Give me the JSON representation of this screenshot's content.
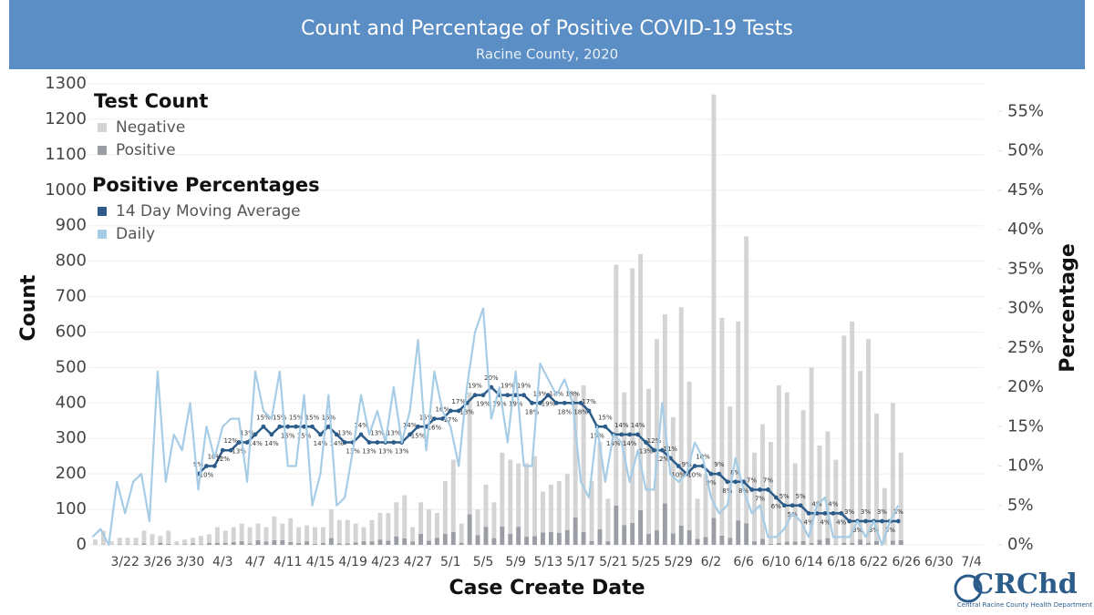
{
  "chart_data": {
    "type": "bar_line",
    "title": "Count and Percentage of Positive COVID-19 Tests",
    "subtitle": "Racine County, 2020",
    "xlabel": "Case Create Date",
    "ylabel": "Count",
    "y2label": "Percentage",
    "legend_titles": [
      "Test Count",
      "Positive Percentages"
    ],
    "categories": [
      null,
      null,
      null,
      null,
      "3/22",
      null,
      null,
      null,
      "3/26",
      null,
      null,
      null,
      "3/30",
      null,
      null,
      null,
      "4/3",
      null,
      null,
      null,
      "4/7",
      null,
      null,
      null,
      "4/11",
      null,
      null,
      null,
      "4/15",
      null,
      null,
      null,
      "4/19",
      null,
      null,
      null,
      "4/23",
      null,
      null,
      null,
      "4/27",
      null,
      null,
      null,
      "5/1",
      null,
      null,
      null,
      "5/5",
      null,
      null,
      null,
      "5/9",
      null,
      null,
      null,
      "5/13",
      null,
      null,
      null,
      "5/17",
      null,
      null,
      null,
      "5/21",
      null,
      null,
      null,
      "5/25",
      null,
      null,
      null,
      "5/29",
      null,
      null,
      null,
      "6/2",
      null,
      null,
      null,
      "6/6",
      null,
      null,
      null,
      "6/10",
      null,
      null,
      null,
      "6/14",
      null,
      null,
      null,
      "6/18",
      null,
      null,
      null,
      "6/22",
      null,
      null,
      null,
      "6/26",
      null,
      null,
      null,
      "6/30",
      null,
      null,
      null,
      "7/4",
      null
    ],
    "series": [
      {
        "name": "Negative",
        "kind": "bar",
        "color": "#d4d4d4",
        "values": [
          15,
          39,
          10,
          18,
          19,
          18,
          36,
          29,
          19,
          37,
          9,
          13,
          16,
          23,
          25,
          44,
          34,
          42,
          50,
          46,
          47,
          41,
          67,
          47,
          67,
          45,
          45,
          47,
          45,
          81,
          66,
          66,
          53,
          40,
          60,
          75,
          78,
          96,
          122,
          41,
          89,
          88,
          70,
          149,
          204,
          54,
          344,
          73,
          119,
          101,
          208,
          209,
          179,
          207,
          225,
          115,
          134,
          146,
          158,
          353,
          414,
          169,
          246,
          120,
          679,
          374,
          718,
          722,
          409,
          539,
          533,
          328,
          616,
          419,
          113,
          178,
          1194,
          614,
          370,
          561,
          809,
          250,
          323,
          287,
          445,
          421,
          221,
          369,
          495,
          266,
          301,
          238,
          584,
          624,
          475,
          574,
          359,
          160,
          388,
          247,
          null,
          null,
          null,
          null,
          null,
          null,
          null,
          null,
          null,
          null
        ]
      },
      {
        "name": "Positive",
        "kind": "bar",
        "color": "#9b9fa5",
        "values": [
          0,
          1,
          0,
          2,
          1,
          2,
          4,
          1,
          6,
          3,
          1,
          2,
          4,
          2,
          5,
          6,
          6,
          8,
          10,
          4,
          13,
          9,
          13,
          13,
          8,
          5,
          10,
          3,
          5,
          19,
          4,
          4,
          7,
          10,
          10,
          15,
          12,
          24,
          18,
          9,
          31,
          12,
          20,
          31,
          36,
          6,
          86,
          27,
          51,
          19,
          52,
          31,
          51,
          23,
          25,
          35,
          36,
          34,
          42,
          77,
          36,
          11,
          44,
          10,
          111,
          56,
          62,
          98,
          31,
          41,
          117,
          32,
          54,
          41,
          17,
          22,
          76,
          26,
          20,
          69,
          61,
          10,
          17,
          3,
          5,
          9,
          9,
          11,
          5,
          14,
          19,
          2,
          6,
          6,
          15,
          6,
          11,
          0,
          12,
          13,
          null,
          null,
          null,
          null,
          null,
          null,
          null,
          null,
          null,
          null
        ]
      },
      {
        "name": "14 Day Moving Average",
        "kind": "line",
        "axis": "y2",
        "markers": true,
        "color": "#2b5c8a",
        "values": [
          null,
          null,
          null,
          null,
          null,
          null,
          null,
          null,
          null,
          null,
          null,
          null,
          null,
          9,
          10,
          10,
          12,
          12,
          13,
          13,
          14,
          15,
          14,
          15,
          15,
          15,
          15,
          15,
          14,
          15,
          14,
          13,
          13,
          14,
          13,
          13,
          13,
          13,
          13,
          14,
          15,
          15,
          16,
          16,
          17,
          17,
          18,
          19,
          19,
          20,
          19,
          19,
          19,
          19,
          18,
          18,
          19,
          18,
          18,
          18,
          18,
          17,
          15,
          15,
          14,
          14,
          14,
          14,
          13,
          12,
          12,
          11,
          10,
          9,
          10,
          10,
          9,
          9,
          8,
          8,
          8,
          7,
          7,
          7,
          6,
          5,
          5,
          5,
          4,
          4,
          4,
          4,
          4,
          3,
          3,
          3,
          3,
          3,
          3,
          3,
          null,
          null,
          null,
          null,
          null,
          null,
          null,
          null,
          null,
          null
        ],
        "value_labels": [
          null,
          null,
          null,
          null,
          null,
          null,
          null,
          null,
          null,
          null,
          null,
          null,
          null,
          "9%",
          "10%",
          "10%",
          "12%",
          "12%",
          "13%",
          "13%",
          "14%",
          "15%",
          "14%",
          "15%",
          "15%",
          "15%",
          "15%",
          "15%",
          "14%",
          "15%",
          "14%",
          "13%",
          "13%",
          "14%",
          "13%",
          "13%",
          "13%",
          "13%",
          "13%",
          "14%",
          "15%",
          "15%",
          "16%",
          "16%",
          "17%",
          "17%",
          "18%",
          "19%",
          "19%",
          "20%",
          "19%",
          "19%",
          "19%",
          "19%",
          "18%",
          "18%",
          "19%",
          "18%",
          "18%",
          "18%",
          "18%",
          "17%",
          "15%",
          "15%",
          "14%",
          "14%",
          "14%",
          "14%",
          "13%",
          "12%",
          "12%",
          "11%",
          "10%",
          "9%",
          "10%",
          "10%",
          "9%",
          "9%",
          "8%",
          "8%",
          "8%",
          "7%",
          "7%",
          "7%",
          "6%",
          "5%",
          "5%",
          "5%",
          "4%",
          "4%",
          "4%",
          "4%",
          "4%",
          "3%",
          "3%",
          "3%",
          "3%",
          "3%",
          "3%",
          "3%",
          null,
          null,
          null,
          null,
          null,
          null,
          null,
          null,
          null,
          null
        ]
      },
      {
        "name": "Daily",
        "kind": "line",
        "axis": "y2",
        "color": "#a7cde6",
        "values": [
          1,
          2,
          0,
          8,
          4,
          8,
          9,
          3,
          22,
          8,
          14,
          12,
          18,
          7,
          15,
          11,
          15,
          16,
          16,
          8,
          22,
          17,
          16,
          22,
          10,
          10,
          19,
          5,
          9,
          19,
          5,
          6,
          12,
          19,
          14,
          17,
          13,
          20,
          13,
          17,
          26,
          12,
          22,
          17,
          15,
          10,
          20,
          27,
          30,
          16,
          20,
          13,
          22,
          10,
          10,
          23,
          21,
          19,
          21,
          18,
          8,
          6,
          15,
          8,
          14,
          13,
          8,
          12,
          7,
          7,
          18,
          9,
          8,
          9,
          13,
          11,
          6,
          4,
          5,
          11,
          7,
          4,
          5,
          1,
          1,
          2,
          4,
          3,
          1,
          5,
          6,
          1,
          1,
          1,
          3,
          1,
          3,
          0,
          3,
          5,
          null,
          null,
          null,
          null,
          null,
          null,
          null,
          null,
          null,
          null
        ]
      }
    ],
    "ylim": [
      0,
      1300
    ],
    "yticks": [
      0,
      100,
      200,
      300,
      400,
      500,
      600,
      700,
      800,
      900,
      1000,
      1100,
      1200,
      1300
    ],
    "y2lim": [
      0,
      58.5
    ],
    "y2ticks": [
      {
        "value": 0,
        "label": "0%"
      },
      {
        "value": 5,
        "label": "5%"
      },
      {
        "value": 10,
        "label": "10%"
      },
      {
        "value": 15,
        "label": "15%"
      },
      {
        "value": 20,
        "label": "20%"
      },
      {
        "value": 25,
        "label": "25%"
      },
      {
        "value": 30,
        "label": "30%"
      },
      {
        "value": 35,
        "label": "35%"
      },
      {
        "value": 40,
        "label": "40%"
      },
      {
        "value": 45,
        "label": "45%"
      },
      {
        "value": 50,
        "label": "50%"
      },
      {
        "value": 55,
        "label": "55%"
      }
    ],
    "grid": true
  },
  "logo": {
    "title": "CRChd",
    "subtitle": "Central Racine County Health Department"
  }
}
